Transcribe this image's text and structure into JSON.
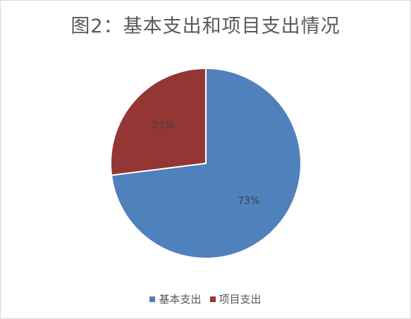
{
  "chart_data": {
    "type": "pie",
    "title": "图2：基本支出和项目支出情况",
    "slices": [
      {
        "label": "基本支出",
        "value": 73,
        "display": "73%",
        "color": "#4f81bd"
      },
      {
        "label": "项目支出",
        "value": 27,
        "display": "27%",
        "color": "#943634"
      }
    ],
    "legend_position": "bottom"
  }
}
